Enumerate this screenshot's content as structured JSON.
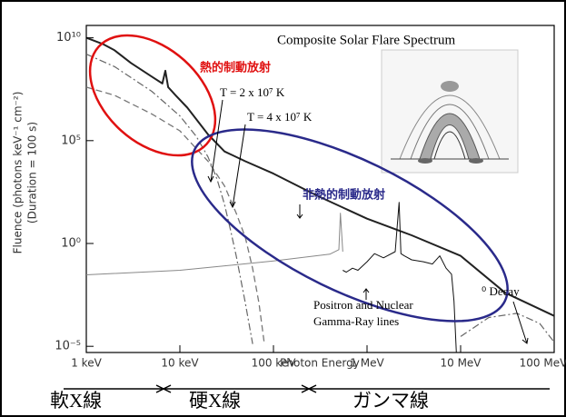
{
  "chart_data": {
    "type": "line",
    "title": "Composite Solar Flare Spectrum",
    "x_label": "Photon Energy",
    "y_label": "Fluence (photons keV⁻¹ cm⁻²)",
    "y_label_2": "(Duration = 100 s)",
    "log_x": true,
    "log_y": true,
    "xlim": [
      1,
      100000
    ],
    "ylim": [
      5e-06,
      40000000000
    ],
    "xticks": [
      {
        "value": 1,
        "label": "1 keV"
      },
      {
        "value": 10,
        "label": "10 keV"
      },
      {
        "value": 100,
        "label": "100 keV"
      },
      {
        "value": 1000,
        "label": "1 MeV"
      },
      {
        "value": 10000,
        "label": "10 MeV"
      },
      {
        "value": 100000,
        "label": "100 MeV"
      }
    ],
    "yticks": [
      {
        "value": 1e-05,
        "label": "10⁻⁵"
      },
      {
        "value": 1,
        "label": "10⁰"
      },
      {
        "value": 100000,
        "label": "10⁵"
      },
      {
        "value": 10000000000,
        "label": "10¹⁰"
      }
    ],
    "series": [
      {
        "color": "#222222",
        "style": "thick",
        "x": [
          1,
          1.5,
          2,
          3,
          5,
          6.5,
          7,
          7.5,
          9,
          12,
          20,
          30,
          50,
          100,
          300,
          1000,
          3000,
          10000,
          30000,
          100000
        ],
        "values": [
          10000000000,
          5000000000,
          2500000000,
          600000000,
          130000000,
          60000000,
          250000000,
          40000000,
          16000000,
          4000000,
          200000,
          30000,
          10000,
          2500,
          200,
          16,
          2.5,
          0.25,
          0.004,
          0.0003
        ]
      },
      {
        "color": "#666666",
        "style": "dashdot",
        "x": [
          1,
          2,
          5,
          10,
          15,
          20,
          25,
          30,
          35,
          40,
          50,
          60
        ],
        "values": [
          1600000000,
          400000000,
          25000000,
          1600000,
          160000,
          16000,
          1300,
          80,
          4,
          0.25,
          0.0013,
          1.3e-05
        ]
      },
      {
        "color": "#777777",
        "style": "dashed",
        "x": [
          1,
          2,
          5,
          10,
          20,
          30,
          40,
          50,
          60,
          70,
          80
        ],
        "values": [
          40000000,
          16000000,
          2000000,
          300000,
          10000,
          630,
          30,
          2,
          0.06,
          0.0013,
          1.3e-05
        ]
      },
      {
        "color": "#888888",
        "style": "thin",
        "x": [
          1,
          10,
          100,
          400,
          500,
          520,
          550
        ],
        "values": [
          0.03,
          0.05,
          0.14,
          0.3,
          0.5,
          30,
          0.4
        ]
      },
      {
        "color": "#111111",
        "style": "thin",
        "x": [
          550,
          600,
          700,
          800,
          1000,
          1200,
          1500,
          2000,
          2200,
          2300,
          2500,
          3000,
          4000,
          5000,
          6000,
          7000,
          8000,
          8500,
          9000
        ],
        "values": [
          0.05,
          0.04,
          0.063,
          0.05,
          0.13,
          0.32,
          0.2,
          0.4,
          100,
          0.32,
          0.25,
          0.16,
          0.13,
          0.1,
          0.25,
          0.063,
          0.032,
          0.0016,
          5e-06
        ]
      },
      {
        "color": "#666666",
        "style": "dashdot",
        "x": [
          10000,
          20000,
          40000,
          70000,
          100000
        ],
        "values": [
          3e-05,
          0.00025,
          0.0004,
          0.00013,
          1.6e-05
        ]
      }
    ],
    "annotations": [
      "熱的制動放射",
      "T = 2 x 10⁷ K",
      "T = 4 x 10⁷ K",
      "非熱的制動放射",
      "Positron and Nuclear",
      "Gamma-Ray lines",
      "⁰ Decay"
    ],
    "bands": [
      "軟X線",
      "硬X線",
      "ガンマ線"
    ]
  }
}
